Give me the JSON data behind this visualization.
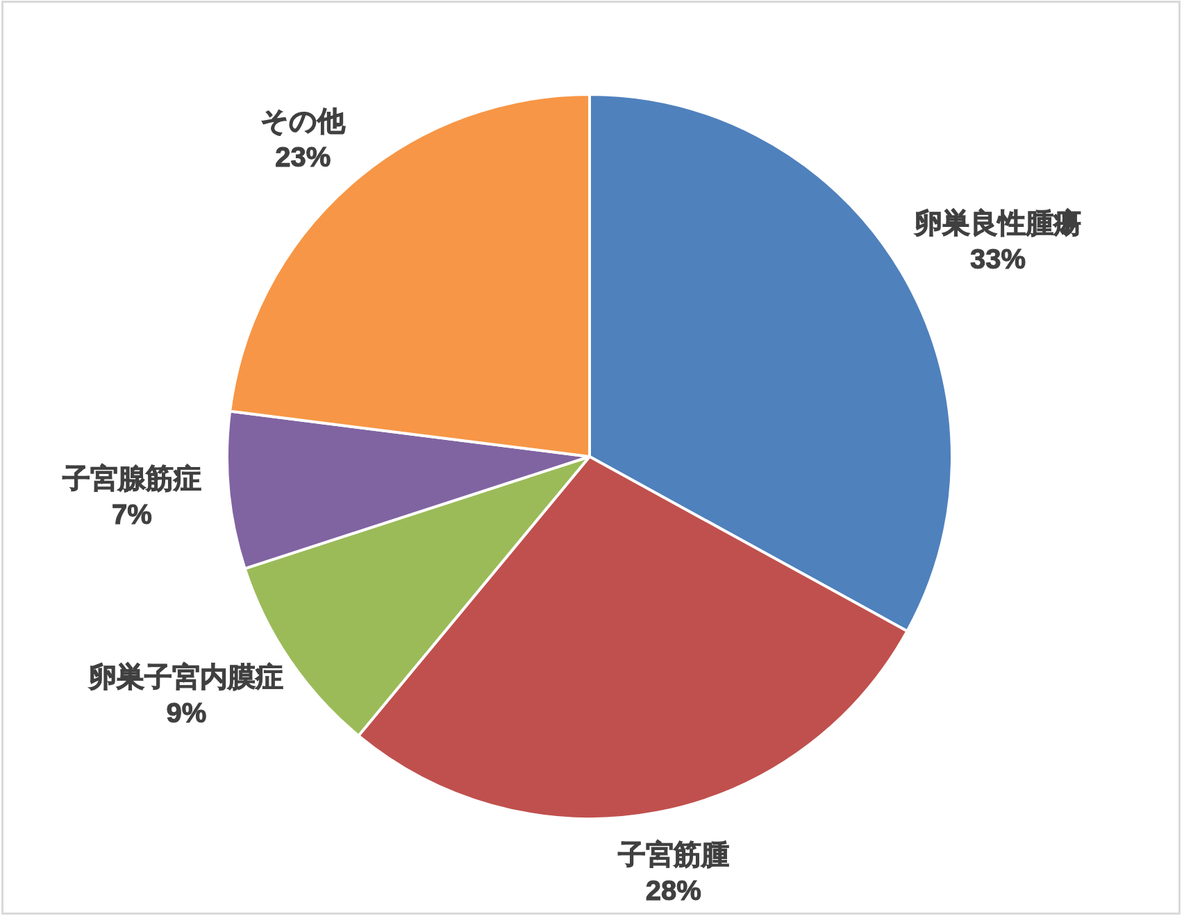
{
  "chart_data": {
    "type": "pie",
    "categories": [
      "卵巣良性腫瘍",
      "子宮筋腫",
      "卵巣子宮内膜症",
      "子宮腺筋症",
      "その他"
    ],
    "values": [
      33,
      28,
      9,
      7,
      23
    ],
    "value_labels": [
      "33%",
      "28%",
      "9%",
      "7%",
      "23%"
    ],
    "colors": [
      "#4f81bd",
      "#c0504d",
      "#9bbb59",
      "#8064a2",
      "#f79646"
    ]
  }
}
